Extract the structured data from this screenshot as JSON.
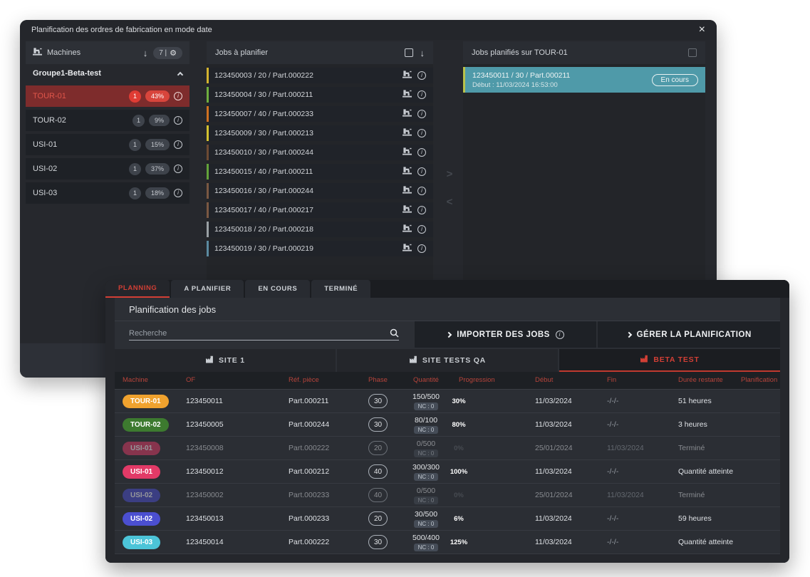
{
  "accent": {
    "red": "#d23f35",
    "teal": "#58c7d9"
  },
  "window1": {
    "title": "Planification des ordres de fabrication en mode date",
    "machines_panel": {
      "title": "Machines",
      "count_label": "7 |",
      "group_name": "Groupe1-Beta-test",
      "items": [
        {
          "name": "TOUR-01",
          "count": "1",
          "load": "43%",
          "selected": true
        },
        {
          "name": "TOUR-02",
          "count": "1",
          "load": "9%",
          "selected": false
        },
        {
          "name": "USI-01",
          "count": "1",
          "load": "15%",
          "selected": false
        },
        {
          "name": "USI-02",
          "count": "1",
          "load": "37%",
          "selected": false
        },
        {
          "name": "USI-03",
          "count": "1",
          "load": "18%",
          "selected": false
        }
      ]
    },
    "jobs_panel": {
      "title": "Jobs à planifier",
      "items": [
        {
          "label": "123450003 / 20 / Part.000222",
          "color": "#d4b32f"
        },
        {
          "label": "123450004 / 30 / Part.000211",
          "color": "#6fae3e"
        },
        {
          "label": "123450007 / 40 / Part.000233",
          "color": "#d07120"
        },
        {
          "label": "123450009 / 30 / Part.000213",
          "color": "#d4c22f"
        },
        {
          "label": "123450010 / 30 / Part.000244",
          "color": "#6d4a33"
        },
        {
          "label": "123450015 / 40 / Part.000211",
          "color": "#63a33a"
        },
        {
          "label": "123450016 / 30 / Part.000244",
          "color": "#7a5842"
        },
        {
          "label": "123450017 / 40 / Part.000217",
          "color": "#7a5842"
        },
        {
          "label": "123450018 / 20 / Part.000218",
          "color": "#9aa0a4"
        },
        {
          "label": "123450019 / 30 / Part.000219",
          "color": "#5b8aa0"
        }
      ]
    },
    "planned_panel": {
      "title": "Jobs planifiés sur TOUR-01",
      "card": {
        "line1": "123450011 / 30 / Part.000211",
        "line2": "Début : 11/03/2024 16:53:00",
        "status": "En cours",
        "bg": "#4f9aa9",
        "edge": "#b9c24b"
      }
    }
  },
  "window2": {
    "tabs": [
      {
        "label": "PLANNING",
        "active": true
      },
      {
        "label": "A PLANIFIER",
        "active": false
      },
      {
        "label": "EN COURS",
        "active": false
      },
      {
        "label": "TERMINÉ",
        "active": false
      }
    ],
    "section_title": "Planification des jobs",
    "search": {
      "placeholder": "Recherche"
    },
    "actions": [
      {
        "label": "IMPORTER DES JOBS",
        "info": true
      },
      {
        "label": "GÉRER LA PLANIFICATION",
        "info": false
      }
    ],
    "site_tabs": [
      {
        "label": "SITE 1",
        "active": false
      },
      {
        "label": "SITE TESTS QA",
        "active": false
      },
      {
        "label": "BETA TEST",
        "active": true
      }
    ],
    "table": {
      "columns": [
        "Machine",
        "OF",
        "Réf. pièce",
        "Phase",
        "Quantité",
        "Progression",
        "Début",
        "Fin",
        "Durée restante",
        "Planification"
      ],
      "rows": [
        {
          "machine": "TOUR-01",
          "color": "#f0a22e",
          "of": "123450011",
          "ref": "Part.000211",
          "phase": "30",
          "qty": "150/500",
          "nc": "NC : 0",
          "pct": 30,
          "pct_label": "30%",
          "bar": "teal",
          "debut": "11/03/2024",
          "fin": "-/-/-",
          "duree": "51 heures",
          "planification": "",
          "dimmed": false
        },
        {
          "machine": "TOUR-02",
          "color": "#3d7a2f",
          "of": "123450005",
          "ref": "Part.000244",
          "phase": "30",
          "qty": "80/100",
          "nc": "NC : 0",
          "pct": 80,
          "pct_label": "80%",
          "bar": "teal",
          "debut": "11/03/2024",
          "fin": "-/-/-",
          "duree": "3 heures",
          "planification": "",
          "dimmed": false
        },
        {
          "machine": "USI-01",
          "color": "#e23a67",
          "of": "123450008",
          "ref": "Part.000222",
          "phase": "20",
          "qty": "0/500",
          "nc": "NC : 0",
          "pct": 0,
          "pct_label": "0%",
          "bar": "gray",
          "debut": "25/01/2024",
          "fin": "11/03/2024",
          "duree": "Terminé",
          "planification": "",
          "dimmed": true
        },
        {
          "machine": "USI-01",
          "color": "#e23a67",
          "of": "123450012",
          "ref": "Part.000212",
          "phase": "40",
          "qty": "300/300",
          "nc": "NC : 0",
          "pct": 100,
          "pct_label": "100%",
          "bar": "teal",
          "debut": "11/03/2024",
          "fin": "-/-/-",
          "duree": "Quantité atteinte",
          "planification": "",
          "dimmed": false
        },
        {
          "machine": "USI-02",
          "color": "#4b4fd0",
          "of": "123450002",
          "ref": "Part.000233",
          "phase": "40",
          "qty": "0/500",
          "nc": "NC : 0",
          "pct": 0,
          "pct_label": "0%",
          "bar": "gray",
          "debut": "25/01/2024",
          "fin": "11/03/2024",
          "duree": "Terminé",
          "planification": "",
          "dimmed": true
        },
        {
          "machine": "USI-02",
          "color": "#4b4fd0",
          "of": "123450013",
          "ref": "Part.000233",
          "phase": "20",
          "qty": "30/500",
          "nc": "NC : 0",
          "pct": 6,
          "pct_label": "6%",
          "bar": "teal",
          "debut": "11/03/2024",
          "fin": "-/-/-",
          "duree": "59 heures",
          "planification": "",
          "dimmed": false
        },
        {
          "machine": "USI-03",
          "color": "#4cc4d8",
          "of": "123450014",
          "ref": "Part.000222",
          "phase": "30",
          "qty": "500/400",
          "nc": "NC : 0",
          "pct": 100,
          "pct_label": "125%",
          "bar": "teal",
          "debut": "11/03/2024",
          "fin": "-/-/-",
          "duree": "Quantité atteinte",
          "planification": "",
          "dimmed": false
        }
      ]
    }
  }
}
